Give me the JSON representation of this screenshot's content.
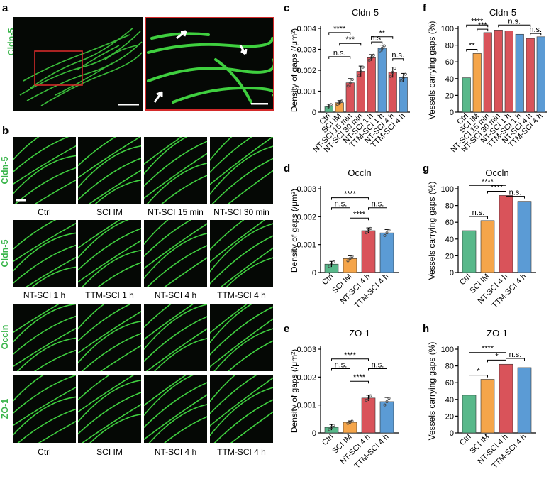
{
  "panel_letters": {
    "a": "a",
    "b": "b",
    "c": "c",
    "d": "d",
    "e": "e",
    "f": "f",
    "g": "g",
    "h": "h"
  },
  "micrograph": {
    "stain_a": "Cldn-5",
    "row_labels": [
      "Cldn-5",
      "Cldn-5",
      "Occln",
      "ZO-1"
    ],
    "row1_captions": [
      "Ctrl",
      "SCI IM",
      "NT-SCI 15 min",
      "NT-SCI 30 min"
    ],
    "row2_captions": [
      "NT-SCI 1 h",
      "TTM-SCI 1 h",
      "NT-SCI 4 h",
      "TTM-SCI 4 h"
    ],
    "row34_captions": [
      "Ctrl",
      "SCI IM",
      "NT-SCI 4 h",
      "TTM-SCI 4 h"
    ],
    "stain_color": "#39b54a",
    "inset_border_color": "#d42a2a"
  },
  "chart_data": [
    {
      "panel": "c",
      "type": "bar",
      "title": "Cldn-5",
      "ylabel": "Density of gaps (/μm²)",
      "ylim": [
        0,
        0.004
      ],
      "yticks": [
        "0",
        "0.001",
        "0.002",
        "0.003",
        "0.004"
      ],
      "categories": [
        "Ctrl",
        "SCI IM",
        "NT-SCI 15 min",
        "NT-SCI 30 min",
        "NT-SCI 1 h",
        "TTM-SCI 1 h",
        "NT-SCI 4 h",
        "TTM-SCI 4 h"
      ],
      "values": [
        0.00028,
        0.00045,
        0.0014,
        0.00195,
        0.0026,
        0.00305,
        0.0019,
        0.00165
      ],
      "errors": [
        0.0001,
        0.0001,
        0.0002,
        0.00025,
        0.00015,
        0.00015,
        0.00025,
        0.0002
      ],
      "colors": [
        "#58b88a",
        "#f5a54a",
        "#d9535a",
        "#d9535a",
        "#d9535a",
        "#5b9bd5",
        "#d9535a",
        "#5b9bd5"
      ],
      "brackets": [
        {
          "from": 0,
          "to": 2,
          "label": "****",
          "level": 0.0038
        },
        {
          "from": 1,
          "to": 3,
          "label": "***",
          "level": 0.00328
        },
        {
          "from": 0,
          "to": 2,
          "label": "n.s.",
          "level": 0.00265
        },
        {
          "from": 4,
          "to": 6,
          "label": "**",
          "level": 0.0036
        },
        {
          "from": 4,
          "to": 5,
          "label": "n.s.",
          "level": 0.00335
        },
        {
          "from": 6,
          "to": 7,
          "label": "n.s.",
          "level": 0.00255
        }
      ]
    },
    {
      "panel": "d",
      "type": "bar",
      "title": "Occln",
      "ylabel": "Density of gaps (/μm²)",
      "ylim": [
        0,
        0.003
      ],
      "yticks": [
        "0",
        "0.001",
        "0.002",
        "0.003"
      ],
      "categories": [
        "Ctrl",
        "SCI IM",
        "NT-SCI 4 h",
        "TTM-SCI 4 h"
      ],
      "values": [
        0.0003,
        0.0005,
        0.0015,
        0.00142
      ],
      "errors": [
        0.0001,
        0.0001,
        0.0001,
        0.00012
      ],
      "colors": [
        "#58b88a",
        "#f5a54a",
        "#d9535a",
        "#5b9bd5"
      ],
      "brackets": [
        {
          "from": 0,
          "to": 2,
          "label": "****",
          "level": 0.00268
        },
        {
          "from": 0,
          "to": 1,
          "label": "n.s.",
          "level": 0.00232
        },
        {
          "from": 2,
          "to": 3,
          "label": "n.s.",
          "level": 0.00232
        },
        {
          "from": 1,
          "to": 2,
          "label": "****",
          "level": 0.00195
        }
      ]
    },
    {
      "panel": "e",
      "type": "bar",
      "title": "ZO-1",
      "ylabel": "Density of gaps (/μm²)",
      "ylim": [
        0,
        0.003
      ],
      "yticks": [
        "0",
        "0.001",
        "0.002",
        "0.003"
      ],
      "categories": [
        "Ctrl",
        "SCI IM",
        "NT-SCI 4 h",
        "TTM-SCI 4 h"
      ],
      "values": [
        0.0002,
        0.00038,
        0.00125,
        0.00112
      ],
      "errors": [
        0.0001,
        5e-05,
        0.0001,
        0.00015
      ],
      "colors": [
        "#58b88a",
        "#f5a54a",
        "#d9535a",
        "#5b9bd5"
      ],
      "brackets": [
        {
          "from": 0,
          "to": 2,
          "label": "****",
          "level": 0.00265
        },
        {
          "from": 0,
          "to": 1,
          "label": "n.s.",
          "level": 0.0023
        },
        {
          "from": 2,
          "to": 3,
          "label": "n.s.",
          "level": 0.0023
        },
        {
          "from": 1,
          "to": 2,
          "label": "****",
          "level": 0.00185
        }
      ]
    },
    {
      "panel": "f",
      "type": "bar",
      "title": "Cldn-5",
      "ylabel": "Vessels carrying gaps (%)",
      "ylim": [
        0,
        100
      ],
      "yticks": [
        "0",
        "20",
        "40",
        "60",
        "80",
        "100"
      ],
      "categories": [
        "Ctrl",
        "SCI IM",
        "NT-SCI 15 min",
        "NT-SCI 30 min",
        "NT-SCI 1 h",
        "TTM-SCI 1 h",
        "NT-SCI 4 h",
        "TTM-SCI 4 h"
      ],
      "values": [
        41,
        70,
        95,
        98,
        97,
        93,
        88,
        90
      ],
      "colors": [
        "#58b88a",
        "#f5a54a",
        "#d9535a",
        "#d9535a",
        "#d9535a",
        "#5b9bd5",
        "#d9535a",
        "#5b9bd5"
      ],
      "brackets": [
        {
          "from": 0,
          "to": 2,
          "label": "****",
          "level": 104
        },
        {
          "from": 1,
          "to": 2,
          "label": "***",
          "level": 99
        },
        {
          "from": 0,
          "to": 1,
          "label": "**",
          "level": 75
        },
        {
          "from": 3,
          "to": 6,
          "label": "n.s.",
          "level": 104
        },
        {
          "from": 6,
          "to": 7,
          "label": "n.s.",
          "level": 94
        }
      ]
    },
    {
      "panel": "g",
      "type": "bar",
      "title": "Occln",
      "ylabel": "Vessels carrying gaps (%)",
      "ylim": [
        0,
        100
      ],
      "yticks": [
        "0",
        "20",
        "40",
        "60",
        "80",
        "100"
      ],
      "categories": [
        "Ctrl",
        "SCI IM",
        "NT-SCI 4 h",
        "TTM-SCI 4 h"
      ],
      "values": [
        50,
        62,
        92,
        85
      ],
      "colors": [
        "#58b88a",
        "#f5a54a",
        "#d9535a",
        "#5b9bd5"
      ],
      "brackets": [
        {
          "from": 0,
          "to": 2,
          "label": "****",
          "level": 104
        },
        {
          "from": 1,
          "to": 2,
          "label": "****",
          "level": 97
        },
        {
          "from": 0,
          "to": 1,
          "label": "n.s.",
          "level": 67
        },
        {
          "from": 2,
          "to": 3,
          "label": "n.s.",
          "level": 91
        }
      ]
    },
    {
      "panel": "h",
      "type": "bar",
      "title": "ZO-1",
      "ylabel": "Vessels carrying gaps (%)",
      "ylim": [
        0,
        100
      ],
      "yticks": [
        "0",
        "20",
        "40",
        "60",
        "80",
        "100"
      ],
      "categories": [
        "Ctrl",
        "SCI IM",
        "NT-SCI 4 h",
        "TTM-SCI 4 h"
      ],
      "values": [
        45,
        64,
        82,
        78
      ],
      "colors": [
        "#58b88a",
        "#f5a54a",
        "#d9535a",
        "#5b9bd5"
      ],
      "brackets": [
        {
          "from": 0,
          "to": 2,
          "label": "****",
          "level": 96
        },
        {
          "from": 0,
          "to": 1,
          "label": "*",
          "level": 69
        },
        {
          "from": 1,
          "to": 2,
          "label": "*",
          "level": 87
        },
        {
          "from": 2,
          "to": 3,
          "label": "n.s.",
          "level": 89
        }
      ]
    }
  ]
}
